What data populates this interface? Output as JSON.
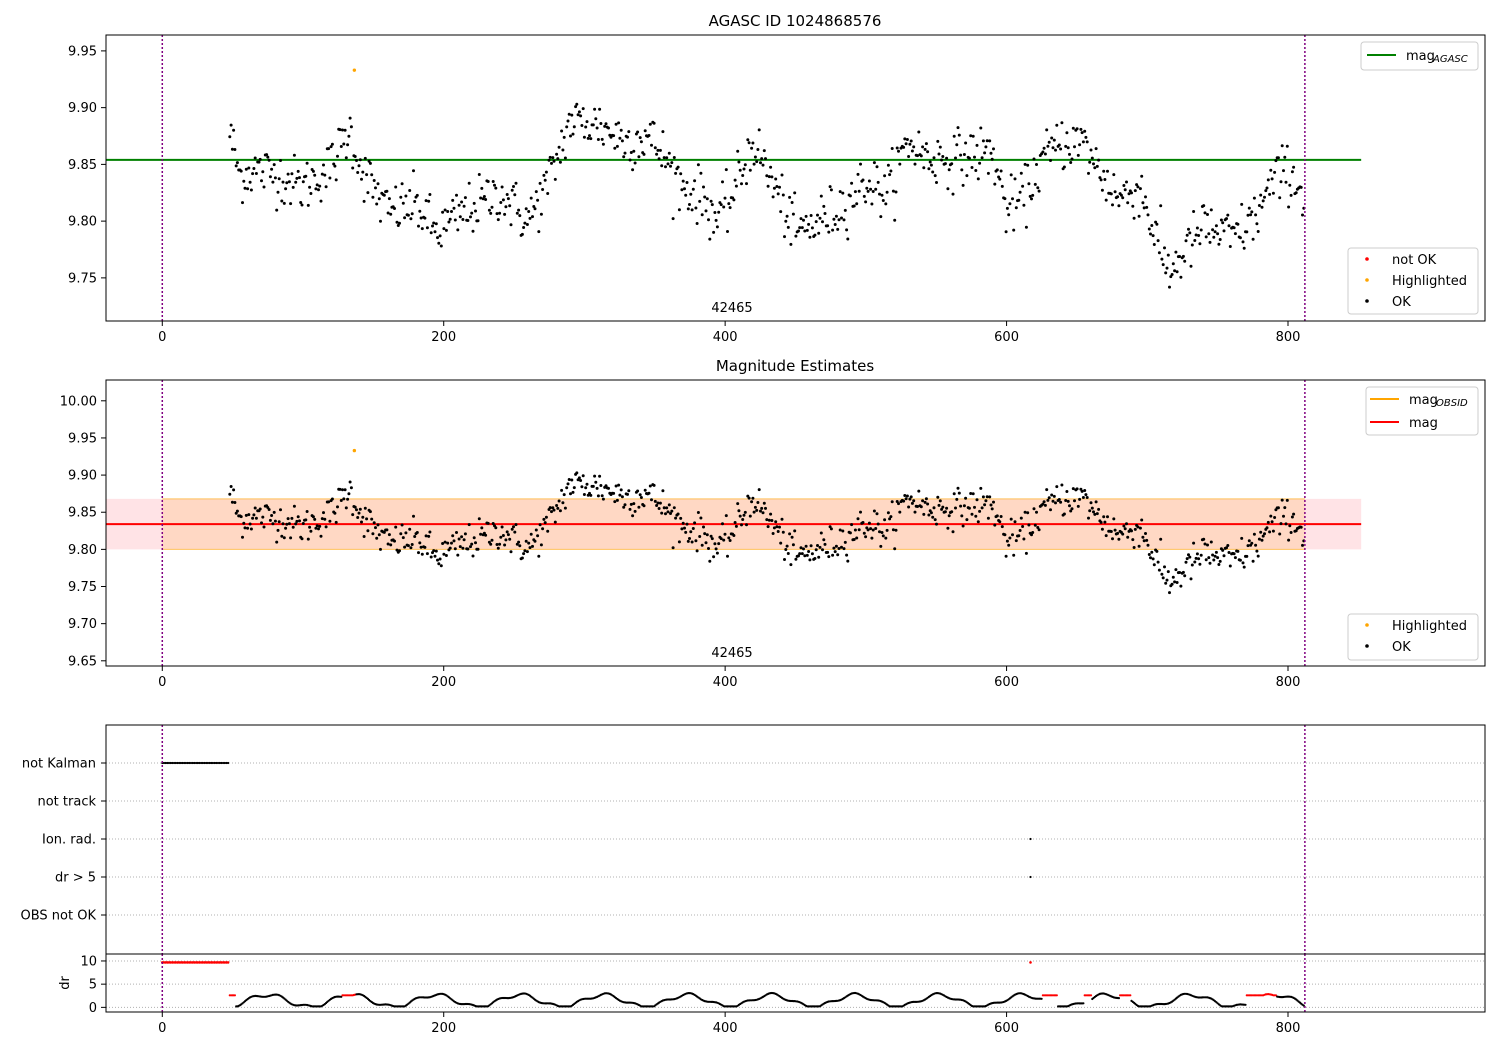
{
  "colors": {
    "ok": "#000000",
    "not_ok": "#ff0000",
    "highlighted": "#ffa500",
    "mag_agasc": "#008000",
    "mag_obsid": "#ffa500",
    "mag": "#ff0000",
    "band_fill": "#ffc0c8",
    "obsid_band": "#ffcfa8",
    "vline": "#800080",
    "grid": "#b0b0b0"
  },
  "chart_data": [
    {
      "type": "scatter",
      "title": "AGASC ID 1024868576",
      "xlim": [
        -40,
        940
      ],
      "ylim": [
        9.712,
        9.964
      ],
      "x_ticks": [
        "0",
        "200",
        "400",
        "600",
        "800"
      ],
      "y_ticks": [
        "9.75",
        "9.80",
        "9.85",
        "9.90",
        "9.95"
      ],
      "vlines": [
        0,
        812
      ],
      "hline": {
        "name": "mag_AGASC",
        "value": 9.854,
        "x_range": [
          -40,
          852
        ]
      },
      "obsid_annotation": {
        "text": "42465",
        "x": 406
      },
      "legend_upper": [
        {
          "label": "mag",
          "sub": "AGASC",
          "style": "line",
          "color_key": "mag_agasc"
        }
      ],
      "legend_lower": [
        {
          "label": "not OK",
          "style": "dot",
          "color_key": "not_ok"
        },
        {
          "label": "Highlighted",
          "style": "dot",
          "color_key": "highlighted"
        },
        {
          "label": "OK",
          "style": "dot",
          "color_key": "ok"
        }
      ],
      "highlighted_points": [
        [
          136.5,
          9.933
        ]
      ],
      "series_trend": {
        "x": [
          48,
          55,
          65,
          80,
          100,
          120,
          133,
          142,
          160,
          180,
          195,
          215,
          240,
          260,
          275,
          290,
          310,
          330,
          345,
          355,
          370,
          385,
          395,
          405,
          420,
          435,
          450,
          460,
          480,
          500,
          515,
          530,
          545,
          560,
          575,
          590,
          600,
          612,
          625,
          640,
          655,
          668,
          680,
          695,
          705,
          715,
          725,
          740,
          750,
          760,
          775,
          790,
          800,
          812
        ],
        "y": [
          9.878,
          9.84,
          9.845,
          9.842,
          9.83,
          9.848,
          9.88,
          9.845,
          9.808,
          9.815,
          9.79,
          9.808,
          9.825,
          9.8,
          9.836,
          9.888,
          9.885,
          9.87,
          9.875,
          9.86,
          9.83,
          9.82,
          9.8,
          9.822,
          9.87,
          9.83,
          9.79,
          9.795,
          9.81,
          9.835,
          9.825,
          9.87,
          9.855,
          9.855,
          9.858,
          9.86,
          9.81,
          9.82,
          9.853,
          9.87,
          9.868,
          9.84,
          9.82,
          9.83,
          9.79,
          9.755,
          9.77,
          9.795,
          9.79,
          9.785,
          9.8,
          9.835,
          9.845,
          9.822
        ]
      }
    },
    {
      "type": "scatter",
      "title": "Magnitude Estimates",
      "xlim": [
        -40,
        940
      ],
      "ylim": [
        9.643,
        10.028
      ],
      "x_ticks": [
        "0",
        "200",
        "400",
        "600",
        "800"
      ],
      "y_ticks": [
        "9.65",
        "9.70",
        "9.75",
        "9.80",
        "9.85",
        "9.90",
        "9.95",
        "10.00"
      ],
      "vlines": [
        0,
        812
      ],
      "hline": {
        "name": "mag",
        "value": 9.834,
        "x_range": [
          -40,
          852
        ]
      },
      "band": {
        "low": 9.8,
        "high": 9.868,
        "x_range": [
          -40,
          852
        ]
      },
      "obsid_band": {
        "low": 9.8,
        "high": 9.868,
        "x_range": [
          0,
          812
        ]
      },
      "obsid_annotation": {
        "text": "42465",
        "x": 406
      },
      "legend_upper": [
        {
          "label": "mag",
          "sub": "OBSID",
          "style": "line",
          "color_key": "mag_obsid"
        },
        {
          "label": "mag",
          "sub": "",
          "style": "line",
          "color_key": "mag"
        }
      ],
      "legend_lower": [
        {
          "label": "Highlighted",
          "style": "dot",
          "color_key": "highlighted"
        },
        {
          "label": "OK",
          "style": "dot",
          "color_key": "ok"
        }
      ],
      "highlighted_points": [
        [
          136.5,
          9.933
        ]
      ]
    },
    {
      "type": "scatter",
      "title": "",
      "xlim": [
        -40,
        940
      ],
      "categories": [
        "not Kalman",
        "not track",
        "Ion. rad.",
        "dr > 5",
        "OBS not OK"
      ],
      "x_ticks": [
        "0",
        "200",
        "400",
        "600",
        "800"
      ],
      "vlines": [
        0,
        812
      ],
      "flags": {
        "not Kalman": [
          [
            0,
            48
          ]
        ],
        "Ion. rad.": [
          [
            617,
            617
          ]
        ],
        "dr > 5": [
          [
            617,
            617
          ]
        ]
      }
    },
    {
      "type": "scatter",
      "title": "",
      "xlim": [
        -40,
        940
      ],
      "ylim": [
        -1,
        11.5
      ],
      "ylabel": "dr",
      "y_ticks": [
        "0",
        "5",
        "10"
      ],
      "x_ticks": [
        "0",
        "200",
        "400",
        "600",
        "800"
      ],
      "vlines": [
        0,
        812
      ],
      "red_high": [
        [
          0,
          48,
          9.7
        ],
        [
          617,
          617,
          9.7
        ]
      ],
      "red_segments": [
        [
          48,
          52
        ],
        [
          128,
          138
        ],
        [
          625,
          636
        ],
        [
          655,
          660
        ],
        [
          680,
          688
        ],
        [
          770,
          792
        ]
      ]
    }
  ]
}
